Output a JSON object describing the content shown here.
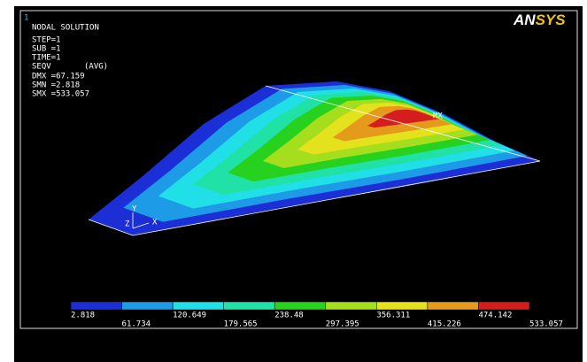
{
  "window_number": "1",
  "info": {
    "title": "NODAL SOLUTION",
    "lines": [
      "STEP=1",
      "SUB =1",
      "TIME=1"
    ],
    "result": "SEQV",
    "avg": "(AVG)",
    "stats": [
      "DMX =67.159",
      "SMN =2.818",
      "SMX =533.057"
    ]
  },
  "logo": {
    "left": "AN",
    "right": "SYS"
  },
  "max_marker": "MX",
  "triad": {
    "x": "X",
    "y": "Y",
    "z": "Z"
  },
  "legend": {
    "colors": [
      "#1c2fd6",
      "#1d9be6",
      "#20dfe6",
      "#20e2a6",
      "#27d21f",
      "#a5de1d",
      "#e3e21c",
      "#e69a1c",
      "#d61d1d"
    ],
    "labels": [
      "2.818",
      "61.734",
      "120.649",
      "179.565",
      "238.48",
      "297.395",
      "356.311",
      "415.226",
      "474.142",
      "533.057"
    ]
  }
}
